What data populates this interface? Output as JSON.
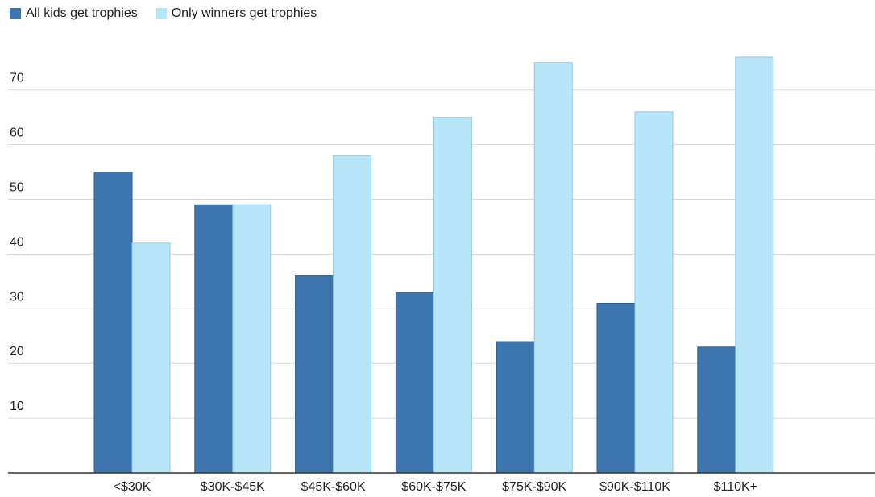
{
  "chart_data": {
    "type": "bar",
    "title": "",
    "xlabel": "",
    "ylabel": "",
    "categories": [
      "<$30K",
      "$30K-$45K",
      "$45K-$60K",
      "$60K-$75K",
      "$75K-$90K",
      "$90K-$110K",
      "$110K+"
    ],
    "series": [
      {
        "name": "All kids get trophies",
        "values": [
          55,
          49,
          36,
          33,
          24,
          31,
          23
        ]
      },
      {
        "name": "Only winners get trophies",
        "values": [
          42,
          49,
          58,
          65,
          75,
          66,
          76
        ]
      }
    ],
    "yticks": [
      "10",
      "20",
      "30",
      "40",
      "50",
      "60",
      "70"
    ],
    "ylim": [
      0,
      80
    ],
    "grid": true,
    "legend_position": "top-left"
  },
  "colors": {
    "series_0": "#3d75ae",
    "series_0_border": "#2a5d8f",
    "series_1": "#b7e6f9",
    "series_1_border": "#8fcbe6",
    "grid": "#d9d9d9",
    "axis": "#333333"
  }
}
